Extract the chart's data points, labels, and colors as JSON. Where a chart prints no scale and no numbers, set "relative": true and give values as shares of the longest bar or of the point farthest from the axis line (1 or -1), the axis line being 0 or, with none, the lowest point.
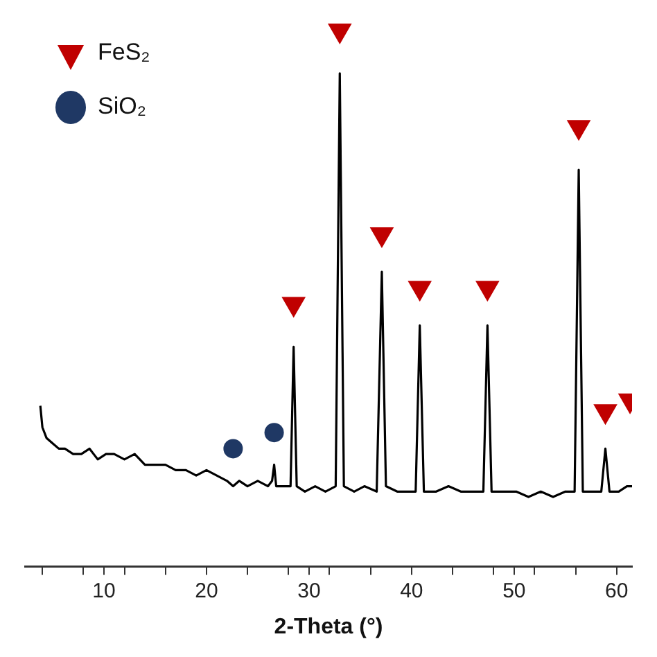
{
  "chart_data": {
    "type": "line",
    "relative": true,
    "xlabel": "2-Theta (°)",
    "xlim": [
      2.3,
      61.5
    ],
    "xticks": [
      {
        "value": 4,
        "label": null
      },
      {
        "value": 8,
        "label": null
      },
      10,
      {
        "value": 12,
        "label": null
      },
      {
        "value": 16,
        "label": null
      },
      20,
      {
        "value": 24,
        "label": null
      },
      {
        "value": 28,
        "label": null
      },
      30,
      {
        "value": 32,
        "label": null
      },
      {
        "value": 36,
        "label": null
      },
      40,
      {
        "value": 44,
        "label": null
      },
      {
        "value": 48,
        "label": null
      },
      50,
      {
        "value": 52,
        "label": null
      },
      {
        "value": 56,
        "label": null
      },
      60
    ],
    "legend": "top left",
    "grid": false,
    "series": [
      {
        "color": "#000000",
        "marker": "none",
        "x": [
          3.8,
          4.0,
          4.4,
          5.0,
          5.6,
          6.2,
          7.0,
          7.8,
          8.6,
          9.4,
          10.2,
          11.0,
          12.0,
          13.0,
          14.0,
          15.0,
          16.0,
          17.0,
          18.0,
          19.0,
          20.0,
          21.0,
          22.0,
          22.6,
          23.2,
          24.0,
          25.0,
          26.0,
          26.4,
          26.6,
          26.8,
          27.4,
          28.2,
          28.5,
          28.8,
          29.6,
          30.6,
          31.6,
          32.6,
          33.0,
          33.4,
          34.4,
          35.4,
          36.6,
          37.1,
          37.5,
          38.6,
          39.6,
          40.4,
          40.8,
          41.2,
          42.4,
          43.6,
          44.8,
          46.0,
          47.0,
          47.4,
          47.8,
          49.0,
          50.2,
          51.4,
          52.6,
          53.8,
          55.0,
          55.9,
          56.3,
          56.7,
          57.6,
          58.5,
          58.9,
          59.3,
          60.2,
          61.0,
          61.5
        ],
        "values": [
          0.3,
          0.26,
          0.24,
          0.23,
          0.22,
          0.22,
          0.21,
          0.21,
          0.22,
          0.2,
          0.21,
          0.21,
          0.2,
          0.21,
          0.19,
          0.19,
          0.19,
          0.18,
          0.18,
          0.17,
          0.18,
          0.17,
          0.16,
          0.15,
          0.16,
          0.15,
          0.16,
          0.15,
          0.16,
          0.19,
          0.15,
          0.15,
          0.15,
          0.41,
          0.15,
          0.14,
          0.15,
          0.14,
          0.15,
          0.92,
          0.15,
          0.14,
          0.15,
          0.14,
          0.55,
          0.15,
          0.14,
          0.14,
          0.14,
          0.45,
          0.14,
          0.14,
          0.15,
          0.14,
          0.14,
          0.14,
          0.45,
          0.14,
          0.14,
          0.14,
          0.13,
          0.14,
          0.13,
          0.14,
          0.14,
          0.74,
          0.14,
          0.14,
          0.14,
          0.22,
          0.14,
          0.14,
          0.15,
          0.15
        ]
      },
      {
        "type": "scatter",
        "name": "FeS₂",
        "color": "#c00000",
        "marker": "triangle",
        "x": [
          28.5,
          33.0,
          37.1,
          40.8,
          47.4,
          56.3,
          58.9,
          61.3
        ],
        "values": [
          0.49,
          1.0,
          0.62,
          0.52,
          0.52,
          0.82,
          0.29,
          0.31
        ]
      },
      {
        "type": "scatter",
        "name": "SiO₂",
        "color": "#1f3864",
        "marker": "circle",
        "x": [
          22.6,
          26.6
        ],
        "values": [
          0.22,
          0.25
        ]
      }
    ]
  }
}
